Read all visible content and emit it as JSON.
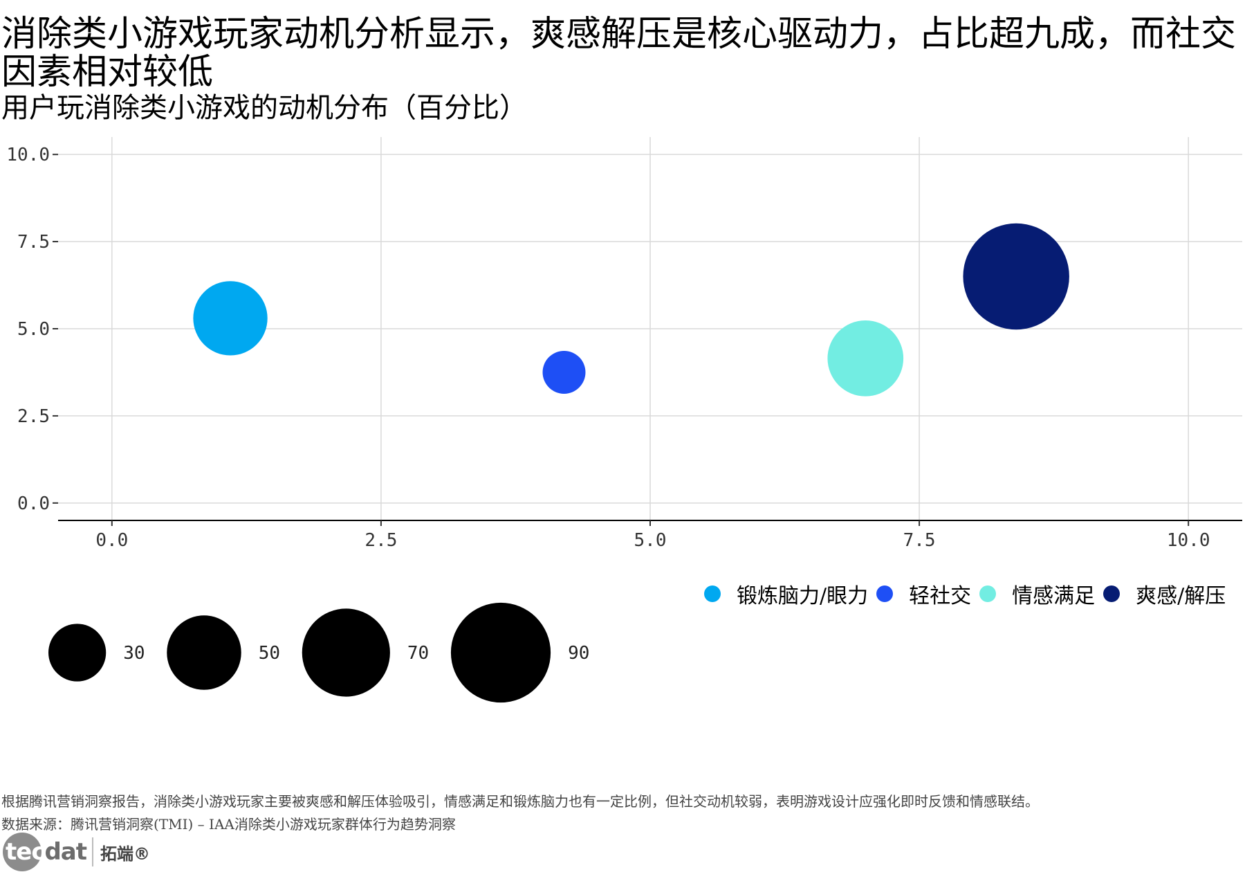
{
  "title": "消除类小游戏玩家动机分析显示，爽感解压是核心驱动力，占比超九成，而社交因素相对较低",
  "subtitle": "用户玩消除类小游戏的动机分布（百分比）",
  "caption": "根据腾讯营销洞察报告，消除类小游戏玩家主要被爽感和解压体验吸引，情感满足和锻炼脑力也有一定比例，但社交动机较弱，表明游戏设计应强化即时反馈和情感联结。",
  "source": "数据来源：腾讯营销洞察(TMI) – IAA消除类小游戏玩家群体行为趋势洞察",
  "logo": {
    "brand_head": "tec",
    "brand_tail": "dat",
    "brand_cn": "拓端®"
  },
  "colors": {
    "grid": "#d9d9d9",
    "axis": "#000000",
    "size_legend_fill": "#000000"
  },
  "chart_data": {
    "type": "scatter",
    "title": "用户玩消除类小游戏的动机分布（百分比）",
    "xlabel": "",
    "ylabel": "",
    "xlim": [
      -0.5,
      10.5
    ],
    "ylim": [
      -0.5,
      10.5
    ],
    "x_ticks": [
      0.0,
      2.5,
      5.0,
      7.5,
      10.0
    ],
    "y_ticks": [
      0.0,
      2.5,
      5.0,
      7.5,
      10.0
    ],
    "x_tick_labels": [
      "0.0",
      "2.5",
      "5.0",
      "7.5",
      "10.0"
    ],
    "y_tick_labels": [
      "0.0",
      "2.5",
      "5.0",
      "7.5",
      "10.0"
    ],
    "grid": true,
    "legend_position": "bottom-right",
    "points": [
      {
        "name": "锻炼脑力/眼力",
        "x": 1.1,
        "y": 5.3,
        "value": 45,
        "color": "#00a8f0"
      },
      {
        "name": "轻社交",
        "x": 4.2,
        "y": 3.75,
        "value": 15,
        "color": "#1e4ff5"
      },
      {
        "name": "情感满足",
        "x": 7.0,
        "y": 4.15,
        "value": 47,
        "color": "#72ede2"
      },
      {
        "name": "爽感/解压",
        "x": 8.4,
        "y": 6.5,
        "value": 92,
        "color": "#061c73"
      }
    ],
    "size_legend": [
      30,
      50,
      70,
      90
    ]
  }
}
